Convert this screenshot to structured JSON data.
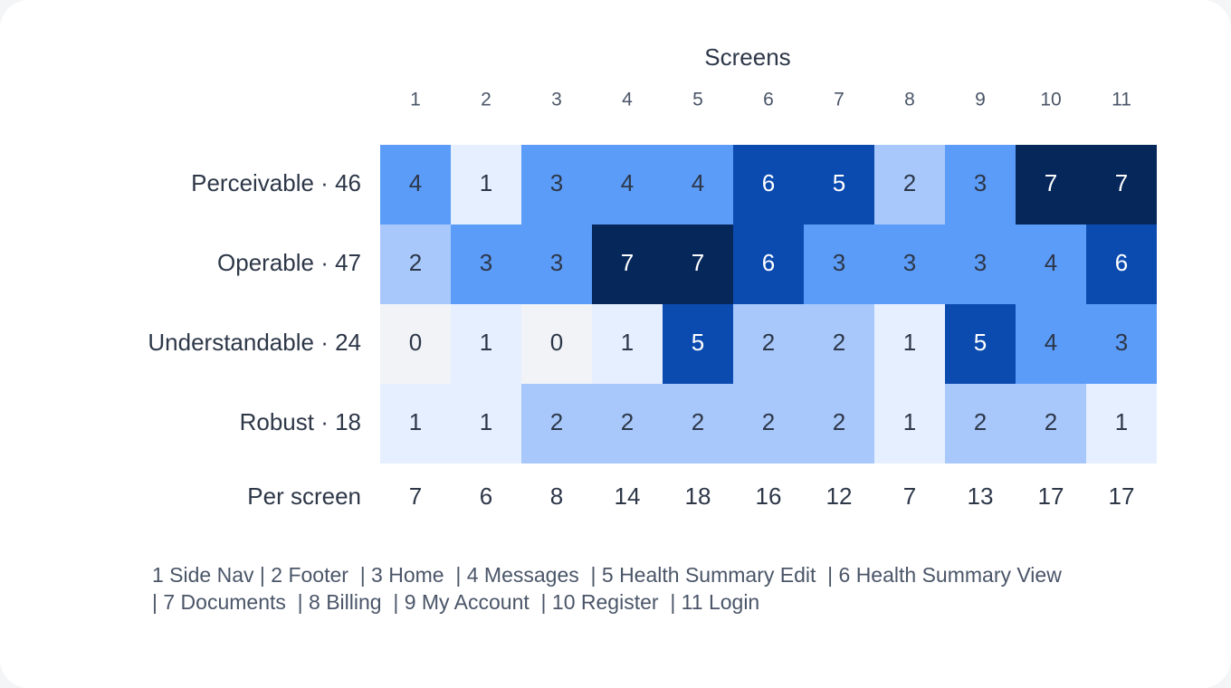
{
  "chart_data": {
    "type": "heatmap",
    "x_title": "Screens",
    "categories": [
      "1",
      "2",
      "3",
      "4",
      "5",
      "6",
      "7",
      "8",
      "9",
      "10",
      "11"
    ],
    "series": [
      {
        "name": "Perceivable · 46",
        "values": [
          4,
          1,
          3,
          4,
          4,
          6,
          5,
          2,
          3,
          7,
          7
        ]
      },
      {
        "name": "Operable · 47",
        "values": [
          2,
          3,
          3,
          7,
          7,
          6,
          3,
          3,
          3,
          4,
          6
        ]
      },
      {
        "name": "Understandable · 24",
        "values": [
          0,
          1,
          0,
          1,
          5,
          2,
          2,
          1,
          5,
          4,
          3
        ]
      },
      {
        "name": "Robust · 18",
        "values": [
          1,
          1,
          2,
          2,
          2,
          2,
          2,
          1,
          2,
          2,
          1
        ]
      }
    ],
    "totals_label": "Per screen",
    "totals": [
      7,
      6,
      8,
      14,
      18,
      16,
      12,
      7,
      13,
      17,
      17
    ],
    "color_scale": [
      "#f1f3f7",
      "#e6efff",
      "#a8c8fc",
      "#5b9cf9",
      "#5b9cf9",
      "#0b4bb0",
      "#0b4bb0",
      "#06275a"
    ],
    "legend_lines": [
      "1 Side Nav | 2 Footer  | 3 Home  | 4 Messages  | 5 Health Summary Edit  | 6 Health Summary View",
      "| 7 Documents  | 8 Billing  | 9 My Account  | 10 Register  | 11 Login"
    ]
  }
}
